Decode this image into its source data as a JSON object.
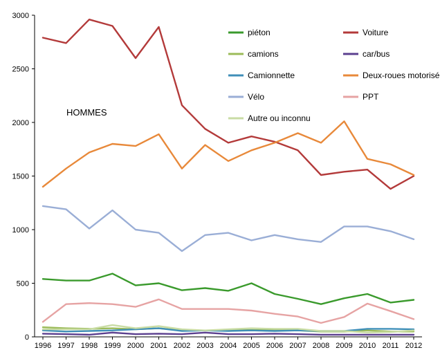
{
  "chart_data": {
    "type": "line",
    "title": "",
    "xlabel": "",
    "ylabel": "",
    "annotation": "HOMMES",
    "x": [
      "1996",
      "1997",
      "1998",
      "1999",
      "2000",
      "2001",
      "2002",
      "2003",
      "2004",
      "2005",
      "2006",
      "2007",
      "2008",
      "2009",
      "2010",
      "2011",
      "2012"
    ],
    "ylim": [
      0,
      3000
    ],
    "y_ticks": [
      "0",
      "500",
      "1000",
      "1500",
      "2000",
      "2500",
      "3000"
    ],
    "grid": false,
    "legend_position": "top-right",
    "series": [
      {
        "name": "piéton",
        "color": "#3a9a2c",
        "values": [
          540,
          525,
          525,
          590,
          480,
          500,
          435,
          455,
          430,
          500,
          400,
          355,
          305,
          360,
          400,
          320,
          345
        ]
      },
      {
        "name": "Voiture",
        "color": "#b33a3a",
        "values": [
          2790,
          2740,
          2960,
          2900,
          2600,
          2890,
          2160,
          1940,
          1810,
          1870,
          1820,
          1740,
          1510,
          1540,
          1560,
          1380,
          1500
        ]
      },
      {
        "name": "camions",
        "color": "#9bbb59",
        "values": [
          90,
          80,
          75,
          80,
          70,
          80,
          60,
          60,
          60,
          65,
          65,
          60,
          50,
          50,
          60,
          50,
          50
        ]
      },
      {
        "name": "car/bus",
        "color": "#5b3f8f",
        "values": [
          30,
          25,
          20,
          40,
          25,
          30,
          25,
          40,
          25,
          25,
          30,
          25,
          20,
          20,
          20,
          20,
          20
        ]
      },
      {
        "name": "Camionnette",
        "color": "#3f8fb8",
        "values": [
          60,
          50,
          55,
          60,
          70,
          80,
          55,
          60,
          55,
          60,
          55,
          60,
          55,
          55,
          75,
          75,
          70
        ]
      },
      {
        "name": "Deux-roues motorisé",
        "color": "#e8893a",
        "values": [
          1400,
          1570,
          1720,
          1800,
          1780,
          1890,
          1570,
          1790,
          1640,
          1740,
          1810,
          1900,
          1810,
          2010,
          1660,
          1610,
          1510
        ]
      },
      {
        "name": "Vélo",
        "color": "#9aaed6",
        "values": [
          1220,
          1190,
          1010,
          1180,
          1000,
          970,
          800,
          950,
          970,
          900,
          950,
          910,
          885,
          1030,
          1030,
          985,
          910
        ]
      },
      {
        "name": "PPT",
        "color": "#e6a3a3",
        "values": [
          140,
          305,
          315,
          305,
          280,
          350,
          260,
          260,
          260,
          245,
          215,
          190,
          130,
          185,
          310,
          240,
          165
        ]
      },
      {
        "name": "Autre ou inconnu",
        "color": "#c9dca4",
        "values": [
          70,
          70,
          70,
          110,
          80,
          100,
          70,
          60,
          70,
          80,
          75,
          75,
          55,
          55,
          40,
          45,
          60
        ]
      }
    ]
  }
}
